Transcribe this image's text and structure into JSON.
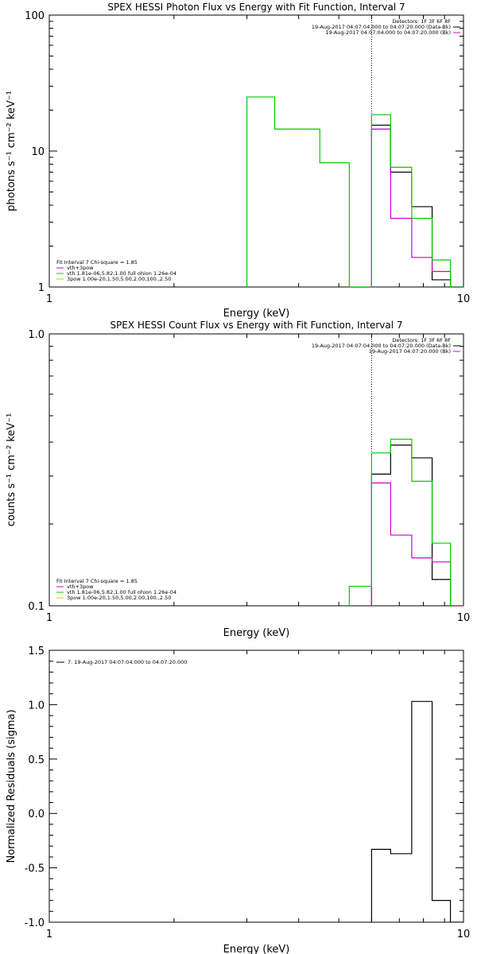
{
  "chart_data": [
    {
      "id": "photon",
      "type": "line",
      "title": "SPEX HESSI Photon Flux vs Energy with Fit Function, Interval 7",
      "xlabel": "Energy (keV)",
      "ylabel": "photons s⁻¹ cm⁻² keV⁻¹",
      "xlim": [
        1,
        10
      ],
      "ylim": [
        1,
        100
      ],
      "xscale": "log",
      "yscale": "log",
      "xticks": [
        {
          "v": 1,
          "label": "1"
        },
        {
          "v": 10,
          "label": "10"
        }
      ],
      "yticks": [
        {
          "v": 1,
          "label": "1"
        },
        {
          "v": 10,
          "label": "10"
        },
        {
          "v": 100,
          "label": "100"
        }
      ],
      "vline": 6.0,
      "legend_top": [
        "Detectors: 1F 3F 6F 8F",
        "19-Aug-2017 04:07:04.000 to 04:07:20.000 (Data-Bk)",
        "19-Aug-2017 04:07:04.000 to 04:07:20.000 (Bk)"
      ],
      "legend_bottom": [
        "Fit Interval 7   Chi-square = 1.85",
        "vth+3pow",
        "vth 1.81e-06,5.82,1.00  full ohion 1.26e-04",
        "3pow 1.00e-20,1.50,5.00,2.00,100.,2.50"
      ],
      "series": [
        {
          "key": "data",
          "color": "#000000",
          "edges": [
            6.0,
            6.67,
            7.5,
            8.4,
            9.3,
            10
          ],
          "values": [
            15.5,
            7.0,
            3.9,
            1.13,
            1.0
          ]
        },
        {
          "key": "bk",
          "color": "#cc00cc",
          "edges": [
            6.0,
            6.67,
            7.5,
            8.4,
            9.3,
            10
          ],
          "values": [
            14.5,
            3.2,
            1.65,
            1.3,
            1.0
          ]
        },
        {
          "key": "fit",
          "color": "#00cc00",
          "edges": [
            3.0,
            3.5,
            4.5,
            5.3,
            6.0,
            6.67,
            7.5,
            8.4,
            9.3,
            10
          ],
          "values": [
            25,
            14.5,
            8.2,
            1.0,
            18.5,
            7.6,
            3.2,
            1.58,
            1.0
          ]
        }
      ]
    },
    {
      "id": "count",
      "type": "line",
      "title": "SPEX HESSI Count Flux vs Energy with Fit Function, Interval 7",
      "xlabel": "Energy (keV)",
      "ylabel": "counts s⁻¹ cm⁻² keV⁻¹",
      "xlim": [
        1,
        10
      ],
      "ylim": [
        0.1,
        1.0
      ],
      "xscale": "log",
      "yscale": "log",
      "xticks": [
        {
          "v": 1,
          "label": "1"
        },
        {
          "v": 10,
          "label": "10"
        }
      ],
      "yticks": [
        {
          "v": 0.1,
          "label": "0.1"
        },
        {
          "v": 1.0,
          "label": "1.0"
        }
      ],
      "vline": 6.0,
      "legend_top": [
        "Detectors: 1F 3F 6F 8F",
        "19-Aug-2017 04:07:04.000 to 04:07:20.000 (Data-Bk)",
        "19-Aug-2017 04:07:20.000 (Bk)"
      ],
      "legend_bottom": [
        "Fit Interval 7   Chi-square = 1.85",
        "vth+3pow",
        "vth 1.81e-06,5.82,1.00  full ohion 1.26e-04",
        "3pow 1.00e-20,1.50,5.00,2.00,100.,2.50"
      ],
      "series": [
        {
          "key": "data",
          "color": "#000000",
          "edges": [
            6.0,
            6.67,
            7.5,
            8.4,
            9.3,
            10
          ],
          "values": [
            0.305,
            0.39,
            0.35,
            0.125,
            0.1
          ]
        },
        {
          "key": "bk",
          "color": "#cc00cc",
          "edges": [
            6.0,
            6.67,
            7.5,
            8.4,
            9.3,
            10
          ],
          "values": [
            0.283,
            0.182,
            0.15,
            0.145,
            0.1
          ]
        },
        {
          "key": "fit",
          "color": "#00cc00",
          "edges": [
            5.3,
            6.0,
            6.67,
            7.5,
            8.4,
            9.3,
            10
          ],
          "values": [
            0.118,
            0.365,
            0.41,
            0.287,
            0.17,
            0.1
          ]
        }
      ]
    },
    {
      "id": "resid",
      "type": "line",
      "title": "",
      "xlabel": "Energy (keV)",
      "ylabel": "Normalized Residuals (sigma)",
      "xlim": [
        1,
        10
      ],
      "ylim": [
        -1.0,
        1.5
      ],
      "xscale": "log",
      "yscale": "linear",
      "xticks": [
        {
          "v": 1,
          "label": "1"
        },
        {
          "v": 10,
          "label": "10"
        }
      ],
      "yticks": [
        {
          "v": -1.0,
          "label": "-1.0"
        },
        {
          "v": -0.5,
          "label": "-0.5"
        },
        {
          "v": 0.0,
          "label": "0.0"
        },
        {
          "v": 0.5,
          "label": "0.5"
        },
        {
          "v": 1.0,
          "label": "1.0"
        },
        {
          "v": 1.5,
          "label": "1.5"
        }
      ],
      "legend_top": [
        "7. 19-Aug-2017 04:07:04.000 to 04:07:20.000"
      ],
      "series": [
        {
          "key": "resid",
          "color": "#000000",
          "edges": [
            6.0,
            6.67,
            7.5,
            8.4,
            9.3,
            10
          ],
          "values": [
            -0.33,
            -0.37,
            1.03,
            -0.8,
            -1.0
          ]
        }
      ]
    }
  ]
}
